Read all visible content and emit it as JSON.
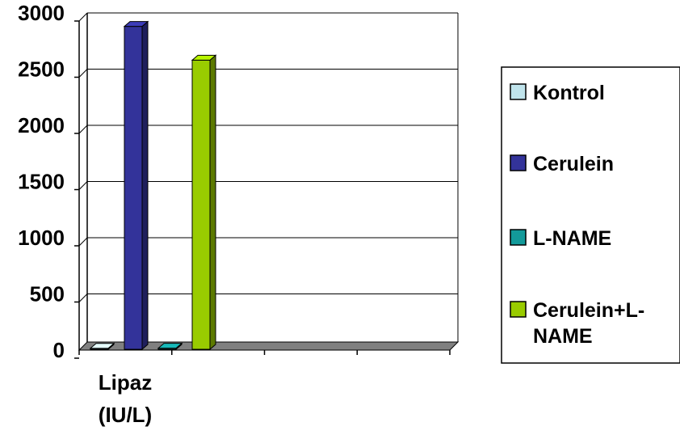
{
  "chart_data": {
    "type": "bar",
    "style": "3d-clustered-column",
    "categories": [
      "Lipaz\n(IU/L)"
    ],
    "series": [
      {
        "name": "Kontrol",
        "values": [
          2
        ],
        "color": "#C0E4EC"
      },
      {
        "name": "Cerulein",
        "values": [
          2880
        ],
        "color": "#33339A"
      },
      {
        "name": "L-NAME",
        "values": [
          3
        ],
        "color": "#139A9A"
      },
      {
        "name": "Cerulein+L-NAME",
        "values": [
          2580
        ],
        "color": "#99CC00"
      }
    ],
    "ylim": [
      0,
      3000
    ],
    "yticks": [
      0,
      500,
      1000,
      1500,
      2000,
      2500,
      3000
    ],
    "grid": true,
    "legend": "right",
    "floor_color": "#808080"
  }
}
